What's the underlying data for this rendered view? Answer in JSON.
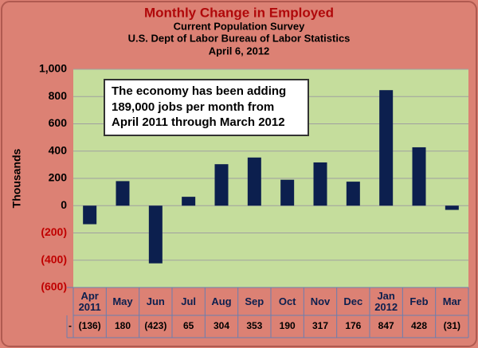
{
  "chart_data": {
    "type": "bar",
    "title": "Monthly Change in Employed",
    "subtitles": [
      "Current Population Survey",
      "U.S. Dept of Labor Bureau of Labor Statistics",
      "April 6, 2012"
    ],
    "ylabel": "Thousands",
    "annotation": "The  economy has been adding\n189,000 jobs per month from\nApril 2011 through March 2012",
    "categories": [
      "Apr\n2011",
      "May",
      "Jun",
      "Jul",
      "Aug",
      "Sep",
      "Oct",
      "Nov",
      "Dec",
      "Jan\n2012",
      "Feb",
      "Mar"
    ],
    "values": [
      -136,
      180,
      -423,
      65,
      304,
      353,
      190,
      317,
      176,
      847,
      428,
      -31
    ],
    "value_labels": [
      "(136)",
      "180",
      "(423)",
      "65",
      "304",
      "353",
      "190",
      "317",
      "176",
      "847",
      "428",
      "(31)"
    ],
    "table_row_label": "-",
    "color": "#0c1f4e",
    "ylim": [
      -600,
      1000
    ],
    "yticks": [
      {
        "value": -600,
        "label": "(600)"
      },
      {
        "value": -400,
        "label": "(400)"
      },
      {
        "value": -200,
        "label": "(200)"
      },
      0,
      200,
      400,
      600,
      800,
      {
        "value": 1000,
        "label": "1,000"
      }
    ],
    "grid": true
  }
}
